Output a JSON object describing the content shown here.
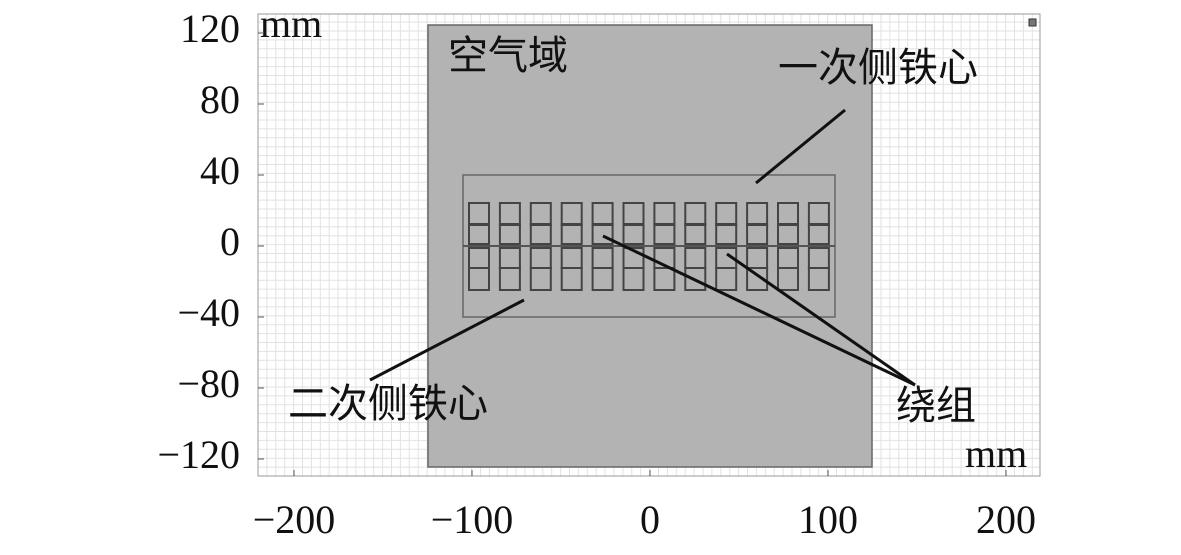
{
  "axes": {
    "x_unit": "mm",
    "y_unit": "mm",
    "xticks": [
      {
        "value": -200,
        "label": "−200"
      },
      {
        "value": -100,
        "label": "−100"
      },
      0,
      100,
      200
    ],
    "yticks": [
      120,
      80,
      40,
      0,
      {
        "value": -40,
        "label": "−40"
      },
      {
        "value": -80,
        "label": "−80"
      },
      {
        "value": -120,
        "label": "−120"
      }
    ]
  },
  "labels": {
    "air": "空气域",
    "primary": "一次侧铁心",
    "secondary": "二次侧铁心",
    "winding": "绕组"
  }
}
